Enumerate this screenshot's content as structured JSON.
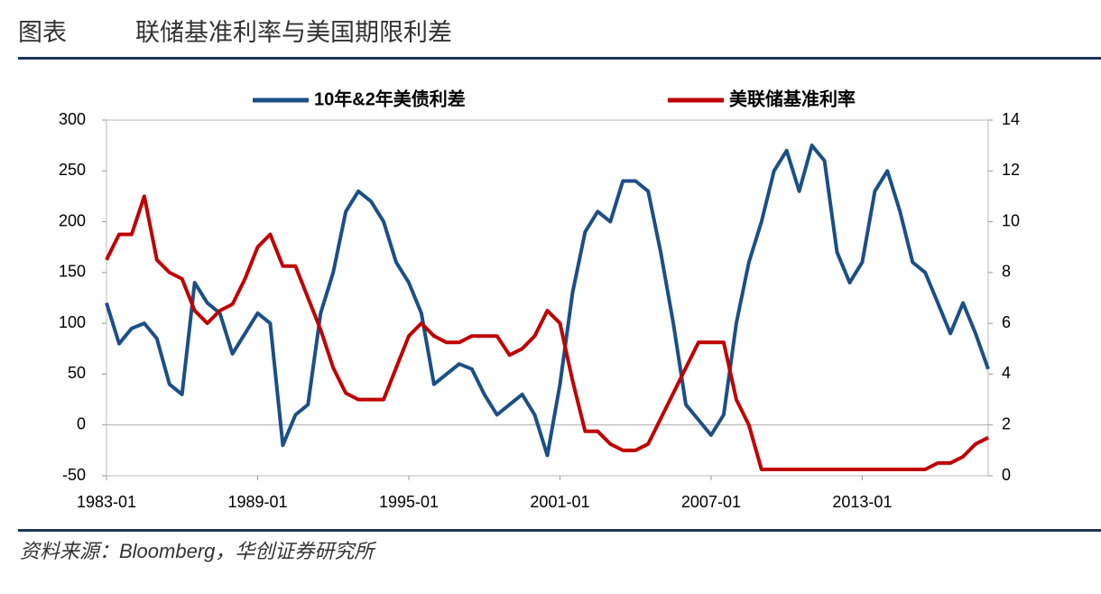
{
  "header": {
    "label": "图表",
    "title": "联储基准利率与美国期限利差"
  },
  "chart_data": {
    "type": "line",
    "x": [
      "1983-01",
      "1983-07",
      "1984-01",
      "1984-07",
      "1985-01",
      "1985-07",
      "1986-01",
      "1986-07",
      "1987-01",
      "1987-07",
      "1988-01",
      "1988-07",
      "1989-01",
      "1989-07",
      "1990-01",
      "1990-07",
      "1991-01",
      "1991-07",
      "1992-01",
      "1992-07",
      "1993-01",
      "1993-07",
      "1994-01",
      "1994-07",
      "1995-01",
      "1995-07",
      "1996-01",
      "1996-07",
      "1997-01",
      "1997-07",
      "1998-01",
      "1998-07",
      "1999-01",
      "1999-07",
      "2000-01",
      "2000-07",
      "2001-01",
      "2001-07",
      "2002-01",
      "2002-07",
      "2003-01",
      "2003-07",
      "2004-01",
      "2004-07",
      "2005-01",
      "2005-07",
      "2006-01",
      "2006-07",
      "2007-01",
      "2007-07",
      "2008-01",
      "2008-07",
      "2009-01",
      "2009-07",
      "2010-01",
      "2010-07",
      "2011-01",
      "2011-07",
      "2012-01",
      "2012-07",
      "2013-01",
      "2013-07",
      "2014-01",
      "2014-07",
      "2015-01",
      "2015-07",
      "2016-01",
      "2016-07",
      "2017-01",
      "2017-07",
      "2018-01"
    ],
    "series": [
      {
        "name": "10年&2年美债利差",
        "color": "#1b4f86",
        "axis": "y",
        "values": [
          120,
          80,
          95,
          100,
          85,
          40,
          30,
          140,
          120,
          110,
          70,
          90,
          110,
          100,
          -20,
          10,
          20,
          110,
          150,
          210,
          230,
          220,
          200,
          160,
          140,
          110,
          40,
          50,
          60,
          55,
          30,
          10,
          20,
          30,
          10,
          -30,
          40,
          130,
          190,
          210,
          200,
          240,
          240,
          230,
          170,
          100,
          20,
          5,
          -10,
          10,
          100,
          160,
          200,
          250,
          270,
          230,
          275,
          260,
          170,
          140,
          160,
          230,
          250,
          210,
          160,
          150,
          120,
          90,
          120,
          90,
          55
        ]
      },
      {
        "name": "美联储基准利率",
        "color": "#c00000",
        "axis": "y2",
        "values": [
          8.5,
          9.5,
          9.5,
          11,
          8.5,
          8,
          7.75,
          6.5,
          6,
          6.5,
          6.75,
          7.75,
          9,
          9.5,
          8.25,
          8.25,
          7,
          5.75,
          4.25,
          3.25,
          3,
          3,
          3,
          4.25,
          5.5,
          6,
          5.5,
          5.25,
          5.25,
          5.5,
          5.5,
          5.5,
          4.75,
          5,
          5.5,
          6.5,
          6,
          3.75,
          1.75,
          1.75,
          1.25,
          1,
          1,
          1.25,
          2.25,
          3.25,
          4.25,
          5.25,
          5.25,
          5.25,
          3,
          2,
          0.25,
          0.25,
          0.25,
          0.25,
          0.25,
          0.25,
          0.25,
          0.25,
          0.25,
          0.25,
          0.25,
          0.25,
          0.25,
          0.25,
          0.5,
          0.5,
          0.75,
          1.25,
          1.5
        ]
      }
    ],
    "xlim": [
      "1983-01",
      "2018-01"
    ],
    "xticks": [
      "1983-01",
      "1989-01",
      "1995-01",
      "2001-01",
      "2007-01",
      "2013-01"
    ],
    "ylim": [
      -50,
      300
    ],
    "yticks": [
      -50,
      0,
      50,
      100,
      150,
      200,
      250,
      300
    ],
    "y2lim": [
      0,
      14
    ],
    "y2ticks": [
      0,
      2,
      4,
      6,
      8,
      10,
      12,
      14
    ],
    "legend": "top"
  },
  "footer": {
    "source": "资料来源：Bloomberg，华创证券研究所"
  }
}
